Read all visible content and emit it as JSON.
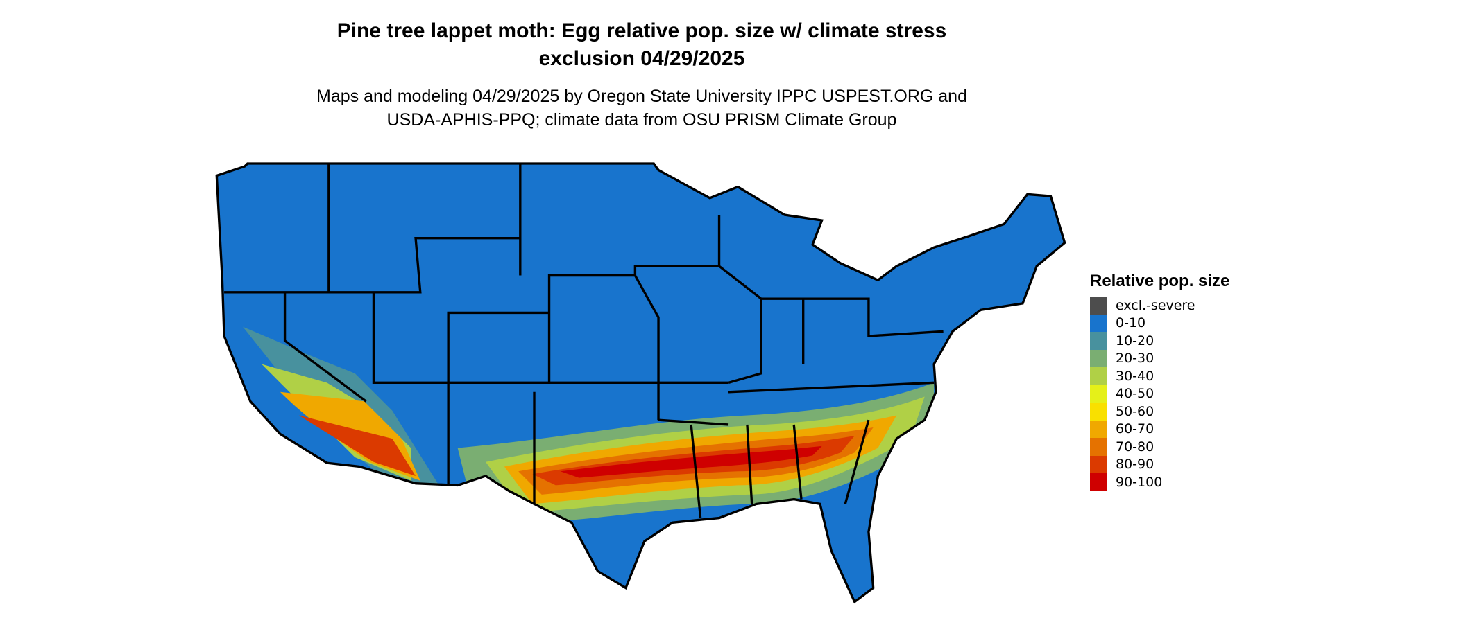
{
  "title_line1": "Pine tree lappet moth: Egg relative pop. size w/ climate stress",
  "title_line2": "exclusion 04/29/2025",
  "subtitle_line1": "Maps and modeling 04/29/2025 by Oregon State University IPPC USPEST.ORG and",
  "subtitle_line2": "USDA-APHIS-PPQ; climate data from OSU PRISM Climate Group",
  "legend": {
    "title": "Relative pop. size",
    "items": [
      {
        "label": "excl.-severe",
        "color": "#4d4d4d"
      },
      {
        "label": "0-10",
        "color": "#1874cd"
      },
      {
        "label": "10-20",
        "color": "#48919e"
      },
      {
        "label": "20-30",
        "color": "#7aae72"
      },
      {
        "label": "30-40",
        "color": "#b0d046"
      },
      {
        "label": "40-50",
        "color": "#e5f019"
      },
      {
        "label": "50-60",
        "color": "#f9e000"
      },
      {
        "label": "60-70",
        "color": "#f0a800"
      },
      {
        "label": "70-80",
        "color": "#e57200"
      },
      {
        "label": "80-90",
        "color": "#db3a00"
      },
      {
        "label": "90-100",
        "color": "#cf0000"
      }
    ]
  },
  "chart_data": {
    "type": "heatmap",
    "region": "Contiguous United States",
    "variable": "Relative pop. size",
    "highest_values_region": "southern band from southern Arizona/California deserts through Texas, Louisiana, Mississippi, Alabama, Georgia, South Carolina",
    "background_value": "0-10"
  }
}
